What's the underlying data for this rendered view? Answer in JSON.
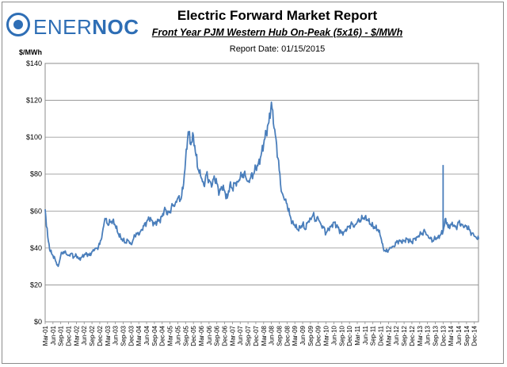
{
  "header": {
    "logo_text_light": "ENER",
    "logo_text_bold": "NOC",
    "title": "Electric Forward Market Report",
    "subtitle": "Front Year PJM Western Hub On-Peak (5x16) - $/MWh",
    "report_date": "Report Date: 01/15/2015"
  },
  "colors": {
    "line": "#4a7ebb",
    "grid": "#8c8c8c",
    "brand": "#2e6eb5"
  },
  "chart_data": {
    "type": "line",
    "title": "Electric Forward Market Report",
    "subtitle": "Front Year PJM Western Hub On-Peak (5x16) - $/MWh",
    "ylabel": "$/MWh",
    "xlabel": "",
    "ylim": [
      0,
      140
    ],
    "y_ticks": [
      0,
      20,
      40,
      60,
      80,
      100,
      120,
      140
    ],
    "y_tick_labels": [
      "$0",
      "$20",
      "$40",
      "$60",
      "$80",
      "$100",
      "$120",
      "$140"
    ],
    "x_range": [
      "2001-03",
      "2015-01"
    ],
    "x_tick_labels": [
      "Mar-01",
      "Jun-01",
      "Sep-01",
      "Dec-01",
      "Mar-02",
      "Jun-02",
      "Sep-02",
      "Dec-02",
      "Mar-03",
      "Jun-03",
      "Sep-03",
      "Dec-03",
      "Mar-04",
      "Jun-04",
      "Sep-04",
      "Dec-04",
      "Mar-05",
      "Jun-05",
      "Sep-05",
      "Dec-05",
      "Mar-06",
      "Jun-06",
      "Sep-06",
      "Dec-06",
      "Mar-07",
      "Jun-07",
      "Sep-07",
      "Dec-07",
      "Mar-08",
      "Jun-08",
      "Sep-08",
      "Dec-08",
      "Mar-09",
      "Jun-09",
      "Sep-09",
      "Dec-09",
      "Mar-10",
      "Jun-10",
      "Sep-10",
      "Dec-10",
      "Mar-11",
      "Jun-11",
      "Sep-11",
      "Dec-11",
      "Mar-12",
      "Jun-12",
      "Sep-12",
      "Dec-12",
      "Mar-13",
      "Jun-13",
      "Sep-13",
      "Dec-13",
      "Mar-14",
      "Jun-14",
      "Sep-14",
      "Dec-14"
    ],
    "x_tick_labels_shown": [
      "Mar-01",
      "Jun-01",
      "Sep-01",
      "Dec-01",
      "Mar-02",
      "Jun-02",
      "Sep-02",
      "Dec-02",
      "Mar-03",
      "Jun-03",
      "Sep-03",
      "Dec-03",
      "Mar-04",
      "Jun-04",
      "Sep-04",
      "Dec-04",
      "Mar-05",
      "Jun-05",
      "Sep-05",
      "Dec-05",
      "Mar-06",
      "Jun-06",
      "Sep-06",
      "Dec-06",
      "Mar-07",
      "Jun-07",
      "Sep-07",
      "Dec-07",
      "Mar-08",
      "Jun-08",
      "Sep-08",
      "Dec-08",
      "Mar-09",
      "Jun-09",
      "Sep-09",
      "Dec-09",
      "Mar-10",
      "Jun-10",
      "Sep-10",
      "Dec-10",
      "Mar-11",
      "Jun-11",
      "Sep-11",
      "Dec-11",
      "Mar-12",
      "Jun-12",
      "Sep-12",
      "Dec-12",
      "Mar-13",
      "Jun-13",
      "Sep-13",
      "Dec-13",
      "Mar-14",
      "Jun-14",
      "Sep-14",
      "Dec-14"
    ],
    "grid": true,
    "legend": "none",
    "series": [
      {
        "values": [
          [
            "2001-03",
            61
          ],
          [
            "2001-04",
            46
          ],
          [
            "2001-05",
            38
          ],
          [
            "2001-06",
            36
          ],
          [
            "2001-07",
            33
          ],
          [
            "2001-08",
            30
          ],
          [
            "2001-09",
            36
          ],
          [
            "2001-10",
            38
          ],
          [
            "2001-11",
            37
          ],
          [
            "2001-12",
            36
          ],
          [
            "2002-01",
            37
          ],
          [
            "2002-02",
            35
          ],
          [
            "2002-03",
            36
          ],
          [
            "2002-04",
            34
          ],
          [
            "2002-05",
            35
          ],
          [
            "2002-06",
            36
          ],
          [
            "2002-07",
            37
          ],
          [
            "2002-08",
            36
          ],
          [
            "2002-09",
            38
          ],
          [
            "2002-10",
            39
          ],
          [
            "2002-11",
            40
          ],
          [
            "2002-12",
            42
          ],
          [
            "2003-01",
            48
          ],
          [
            "2003-02",
            56
          ],
          [
            "2003-03",
            53
          ],
          [
            "2003-04",
            54
          ],
          [
            "2003-05",
            55
          ],
          [
            "2003-06",
            52
          ],
          [
            "2003-07",
            48
          ],
          [
            "2003-08",
            46
          ],
          [
            "2003-09",
            44
          ],
          [
            "2003-10",
            43
          ],
          [
            "2003-11",
            44
          ],
          [
            "2003-12",
            42
          ],
          [
            "2004-01",
            45
          ],
          [
            "2004-02",
            48
          ],
          [
            "2004-03",
            47
          ],
          [
            "2004-04",
            50
          ],
          [
            "2004-05",
            52
          ],
          [
            "2004-06",
            54
          ],
          [
            "2004-07",
            56
          ],
          [
            "2004-08",
            55
          ],
          [
            "2004-09",
            53
          ],
          [
            "2004-10",
            54
          ],
          [
            "2004-11",
            55
          ],
          [
            "2004-12",
            57
          ],
          [
            "2005-01",
            62
          ],
          [
            "2005-02",
            58
          ],
          [
            "2005-03",
            60
          ],
          [
            "2005-04",
            63
          ],
          [
            "2005-05",
            64
          ],
          [
            "2005-06",
            67
          ],
          [
            "2005-07",
            66
          ],
          [
            "2005-08",
            72
          ],
          [
            "2005-09",
            88
          ],
          [
            "2005-10",
            103
          ],
          [
            "2005-11",
            96
          ],
          [
            "2005-12",
            101
          ],
          [
            "2006-01",
            90
          ],
          [
            "2006-02",
            82
          ],
          [
            "2006-03",
            78
          ],
          [
            "2006-04",
            74
          ],
          [
            "2006-05",
            80
          ],
          [
            "2006-06",
            77
          ],
          [
            "2006-07",
            73
          ],
          [
            "2006-08",
            79
          ],
          [
            "2006-09",
            75
          ],
          [
            "2006-10",
            70
          ],
          [
            "2006-11",
            73
          ],
          [
            "2006-12",
            71
          ],
          [
            "2007-01",
            67
          ],
          [
            "2007-02",
            74
          ],
          [
            "2007-03",
            72
          ],
          [
            "2007-04",
            75
          ],
          [
            "2007-05",
            76
          ],
          [
            "2007-06",
            78
          ],
          [
            "2007-07",
            80
          ],
          [
            "2007-08",
            79
          ],
          [
            "2007-09",
            76
          ],
          [
            "2007-10",
            78
          ],
          [
            "2007-11",
            80
          ],
          [
            "2007-12",
            83
          ],
          [
            "2008-01",
            86
          ],
          [
            "2008-02",
            90
          ],
          [
            "2008-03",
            96
          ],
          [
            "2008-04",
            103
          ],
          [
            "2008-05",
            108
          ],
          [
            "2008-06",
            119
          ],
          [
            "2008-07",
            105
          ],
          [
            "2008-08",
            96
          ],
          [
            "2008-09",
            82
          ],
          [
            "2008-10",
            70
          ],
          [
            "2008-11",
            66
          ],
          [
            "2008-12",
            64
          ],
          [
            "2009-01",
            58
          ],
          [
            "2009-02",
            54
          ],
          [
            "2009-03",
            52
          ],
          [
            "2009-04",
            50
          ],
          [
            "2009-05",
            51
          ],
          [
            "2009-06",
            53
          ],
          [
            "2009-07",
            50
          ],
          [
            "2009-08",
            54
          ],
          [
            "2009-09",
            56
          ],
          [
            "2009-10",
            58
          ],
          [
            "2009-11",
            55
          ],
          [
            "2009-12",
            56
          ],
          [
            "2010-01",
            53
          ],
          [
            "2010-02",
            51
          ],
          [
            "2010-03",
            48
          ],
          [
            "2010-04",
            50
          ],
          [
            "2010-05",
            52
          ],
          [
            "2010-06",
            54
          ],
          [
            "2010-07",
            52
          ],
          [
            "2010-08",
            50
          ],
          [
            "2010-09",
            48
          ],
          [
            "2010-10",
            49
          ],
          [
            "2010-11",
            50
          ],
          [
            "2010-12",
            52
          ],
          [
            "2011-01",
            53
          ],
          [
            "2011-02",
            52
          ],
          [
            "2011-03",
            54
          ],
          [
            "2011-04",
            55
          ],
          [
            "2011-05",
            56
          ],
          [
            "2011-06",
            57
          ],
          [
            "2011-07",
            55
          ],
          [
            "2011-08",
            53
          ],
          [
            "2011-09",
            52
          ],
          [
            "2011-10",
            51
          ],
          [
            "2011-11",
            50
          ],
          [
            "2011-12",
            46
          ],
          [
            "2012-01",
            40
          ],
          [
            "2012-02",
            38
          ],
          [
            "2012-03",
            39
          ],
          [
            "2012-04",
            40
          ],
          [
            "2012-05",
            41
          ],
          [
            "2012-06",
            43
          ],
          [
            "2012-07",
            44
          ],
          [
            "2012-08",
            43
          ],
          [
            "2012-09",
            44
          ],
          [
            "2012-10",
            45
          ],
          [
            "2012-11",
            44
          ],
          [
            "2012-12",
            43
          ],
          [
            "2013-01",
            45
          ],
          [
            "2013-02",
            46
          ],
          [
            "2013-03",
            47
          ],
          [
            "2013-04",
            48
          ],
          [
            "2013-05",
            49
          ],
          [
            "2013-06",
            47
          ],
          [
            "2013-07",
            45
          ],
          [
            "2013-08",
            44
          ],
          [
            "2013-09",
            45
          ],
          [
            "2013-10",
            46
          ],
          [
            "2013-11",
            47
          ],
          [
            "2013-12",
            49
          ],
          [
            "2014-01",
            56
          ],
          [
            "2014-02",
            51
          ],
          [
            "2014-03",
            53
          ],
          [
            "2014-04",
            52
          ],
          [
            "2014-05",
            51
          ],
          [
            "2014-06",
            54
          ],
          [
            "2014-07",
            53
          ],
          [
            "2014-08",
            51
          ],
          [
            "2014-09",
            52
          ],
          [
            "2014-10",
            50
          ],
          [
            "2014-11",
            48
          ],
          [
            "2015-01",
            45
          ]
        ]
      }
    ],
    "annotations": [
      {
        "x": "2013-12",
        "y": 85,
        "type": "spike"
      }
    ]
  }
}
